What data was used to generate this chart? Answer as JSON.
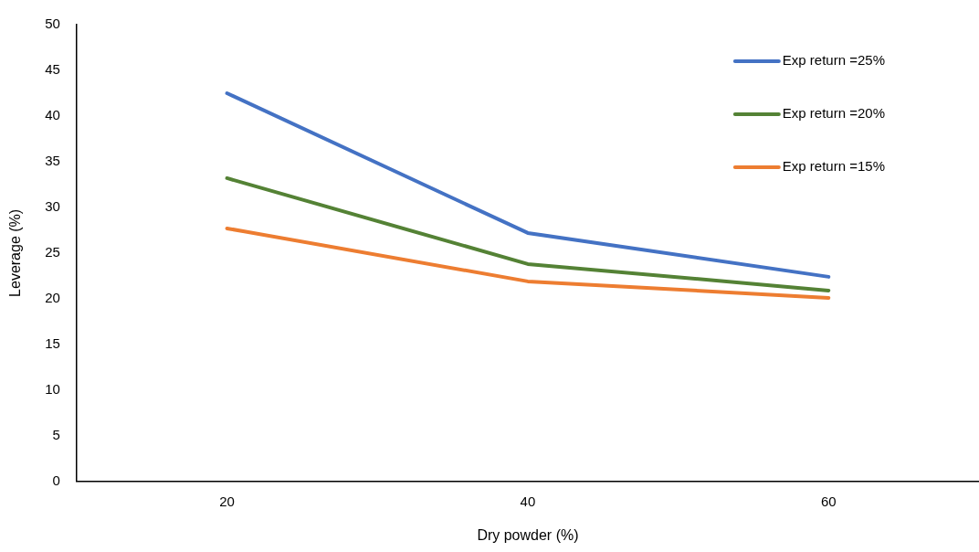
{
  "chart_data": {
    "type": "line",
    "xlabel": "Dry powder (%)",
    "ylabel": "Leverage (%)",
    "categories": [
      "20",
      "40",
      "60"
    ],
    "series": [
      {
        "name": "Exp return =25%",
        "color": "#4472c4",
        "values": [
          42.5,
          27.2,
          22.4
        ]
      },
      {
        "name": "Exp return =20%",
        "color": "#548235",
        "values": [
          33.2,
          23.8,
          20.9
        ]
      },
      {
        "name": "Exp return =15%",
        "color": "#ed7d31",
        "values": [
          27.7,
          21.9,
          20.1
        ]
      }
    ],
    "ylim": [
      0,
      50
    ],
    "yticks": [
      0,
      5,
      10,
      15,
      20,
      25,
      30,
      35,
      40,
      45,
      50
    ],
    "grid": false,
    "legend": "top right",
    "marker": "none",
    "line_style": "solid"
  }
}
